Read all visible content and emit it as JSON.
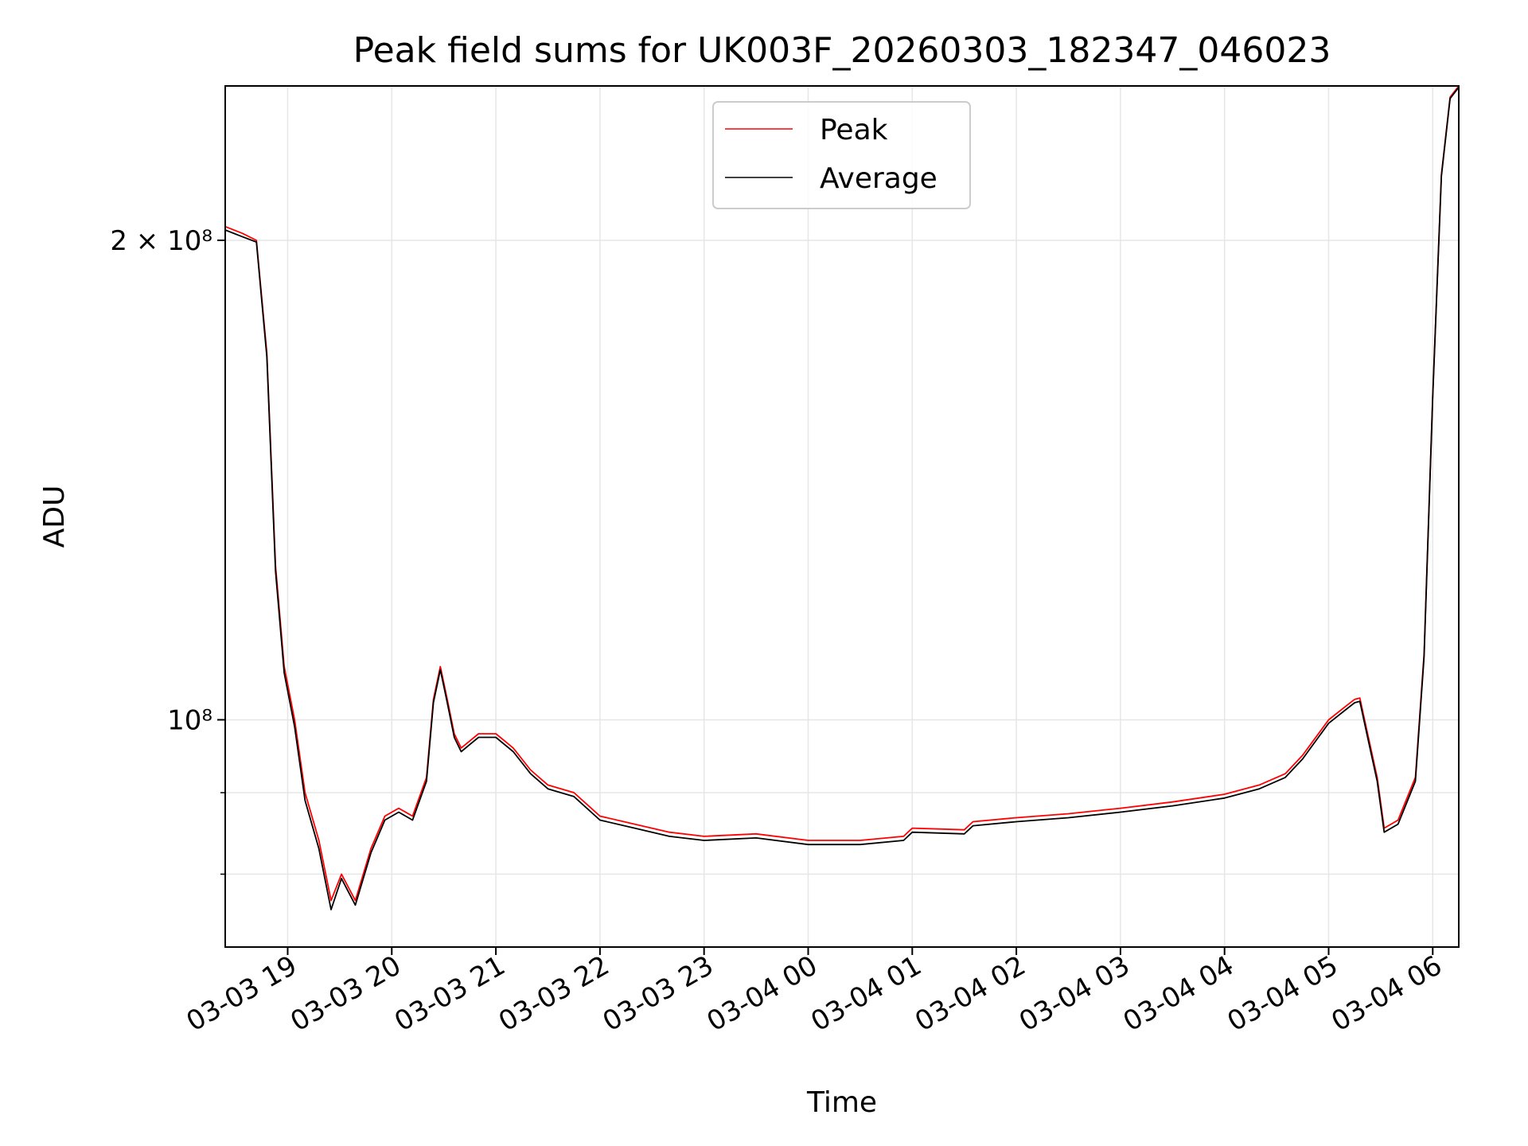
{
  "chart_data": {
    "type": "line",
    "title": "Peak field sums for UK003F_20260303_182347_046023",
    "xlabel": "Time",
    "ylabel": "ADU",
    "yscale": "log",
    "ylim": [
      72000000,
      250000000
    ],
    "xlim": [
      "2026-03-03 18:24",
      "2026-03-04 06:15"
    ],
    "grid": true,
    "legend_position": "top-center",
    "x_ticks": [
      "03-03 19",
      "03-03 20",
      "03-03 21",
      "03-03 22",
      "03-03 23",
      "03-04 00",
      "03-04 01",
      "03-04 02",
      "03-04 03",
      "03-04 04",
      "03-04 05",
      "03-04 06"
    ],
    "y_ticks": [
      {
        "value": 200000000,
        "label": "2 × 10⁸"
      },
      {
        "value": 100000000,
        "label": "10⁸"
      }
    ],
    "colors": {
      "peak": "#ff0000",
      "average": "#000000",
      "grid": "#e6e6e6"
    },
    "x": [
      "2026-03-03 18:24",
      "2026-03-03 18:34",
      "2026-03-03 18:42",
      "2026-03-03 18:48",
      "2026-03-03 18:53",
      "2026-03-03 18:58",
      "2026-03-03 19:04",
      "2026-03-03 19:10",
      "2026-03-03 19:18",
      "2026-03-03 19:25",
      "2026-03-03 19:31",
      "2026-03-03 19:39",
      "2026-03-03 19:48",
      "2026-03-03 19:56",
      "2026-03-03 20:04",
      "2026-03-03 20:12",
      "2026-03-03 20:20",
      "2026-03-03 20:24",
      "2026-03-03 20:28",
      "2026-03-03 20:32",
      "2026-03-03 20:36",
      "2026-03-03 20:40",
      "2026-03-03 20:45",
      "2026-03-03 20:50",
      "2026-03-03 21:00",
      "2026-03-03 21:10",
      "2026-03-03 21:20",
      "2026-03-03 21:30",
      "2026-03-03 21:45",
      "2026-03-03 22:00",
      "2026-03-03 22:20",
      "2026-03-03 22:40",
      "2026-03-03 23:00",
      "2026-03-03 23:30",
      "2026-03-04 00:00",
      "2026-03-04 00:30",
      "2026-03-04 00:55",
      "2026-03-04 01:00",
      "2026-03-04 01:30",
      "2026-03-04 01:35",
      "2026-03-04 02:00",
      "2026-03-04 02:30",
      "2026-03-04 03:00",
      "2026-03-04 03:30",
      "2026-03-04 04:00",
      "2026-03-04 04:20",
      "2026-03-04 04:35",
      "2026-03-04 04:45",
      "2026-03-04 05:00",
      "2026-03-04 05:10",
      "2026-03-04 05:15",
      "2026-03-04 05:18",
      "2026-03-04 05:22",
      "2026-03-04 05:28",
      "2026-03-04 05:32",
      "2026-03-04 05:40",
      "2026-03-04 05:50",
      "2026-03-04 05:55",
      "2026-03-04 06:00",
      "2026-03-04 06:05",
      "2026-03-04 06:10",
      "2026-03-04 06:15"
    ],
    "series": [
      {
        "name": "Peak",
        "values": [
          204000000,
          202000000,
          200000000,
          170000000,
          125000000,
          108000000,
          100000000,
          90000000,
          84000000,
          77000000,
          80000000,
          77000000,
          83000000,
          87000000,
          88000000,
          87000000,
          92000000,
          103000000,
          108000000,
          103000000,
          98000000,
          96000000,
          97000000,
          98000000,
          98000000,
          96000000,
          93000000,
          91000000,
          90000000,
          87000000,
          86000000,
          85000000,
          84500000,
          84800000,
          84000000,
          84000000,
          84500000,
          85500000,
          85300000,
          86300000,
          86800000,
          87300000,
          88000000,
          88800000,
          89800000,
          91000000,
          92500000,
          95000000,
          100000000,
          102000000,
          103000000,
          103200000,
          98500000,
          92000000,
          85500000,
          86500000,
          92000000,
          110000000,
          160000000,
          220000000,
          246000000,
          250000000
        ]
      },
      {
        "name": "Average",
        "values": [
          203000000,
          201000000,
          199500000,
          169000000,
          124000000,
          107000000,
          99000000,
          89000000,
          83000000,
          76000000,
          79500000,
          76500000,
          82500000,
          86500000,
          87500000,
          86500000,
          91500000,
          102500000,
          107500000,
          102500000,
          97500000,
          95500000,
          96500000,
          97500000,
          97500000,
          95500000,
          92500000,
          90500000,
          89500000,
          86500000,
          85500000,
          84500000,
          84000000,
          84300000,
          83500000,
          83500000,
          84000000,
          85000000,
          84800000,
          85800000,
          86300000,
          86800000,
          87500000,
          88300000,
          89300000,
          90500000,
          92000000,
          94500000,
          99500000,
          101500000,
          102500000,
          102700000,
          98000000,
          91500000,
          85000000,
          86000000,
          91500000,
          109500000,
          159500000,
          219500000,
          245500000,
          249500000
        ]
      }
    ]
  }
}
